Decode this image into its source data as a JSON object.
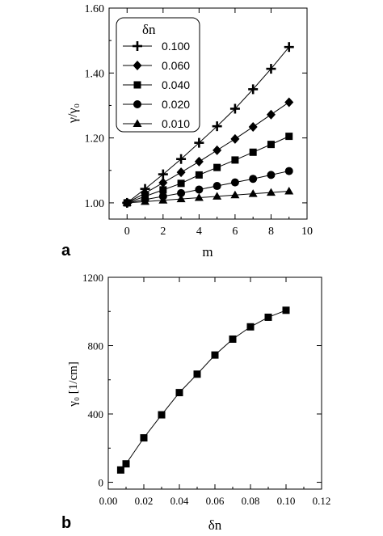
{
  "chart_data": [
    {
      "panel_label": "a",
      "type": "line",
      "xlabel": "m",
      "ylabel": "γ/γ₀",
      "xlim": [
        -1,
        10
      ],
      "ylim": [
        0.95,
        1.6
      ],
      "xticks": [
        0,
        2,
        4,
        6,
        8,
        10
      ],
      "yticks": [
        1.0,
        1.2,
        1.4,
        1.6
      ],
      "ytick_labels": [
        "1.00",
        "1.20",
        "1.40",
        "1.60"
      ],
      "legend_title": "δn",
      "legend_position": "top-left",
      "grid": false,
      "x": [
        0,
        1,
        2,
        3,
        4,
        5,
        6,
        7,
        8,
        9
      ],
      "series": [
        {
          "name": "0.100",
          "marker": "plus",
          "values": [
            1.0,
            1.043,
            1.088,
            1.135,
            1.185,
            1.236,
            1.29,
            1.35,
            1.413,
            1.48
          ]
        },
        {
          "name": "0.060",
          "marker": "diamond",
          "values": [
            1.0,
            1.03,
            1.062,
            1.094,
            1.127,
            1.162,
            1.197,
            1.234,
            1.272,
            1.31
          ]
        },
        {
          "name": "0.040",
          "marker": "square",
          "values": [
            1.0,
            1.02,
            1.04,
            1.06,
            1.086,
            1.109,
            1.132,
            1.156,
            1.18,
            1.205
          ]
        },
        {
          "name": "0.020",
          "marker": "circle",
          "values": [
            1.0,
            1.01,
            1.02,
            1.03,
            1.041,
            1.052,
            1.063,
            1.074,
            1.086,
            1.098
          ]
        },
        {
          "name": "0.010",
          "marker": "triangle",
          "values": [
            1.0,
            1.004,
            1.008,
            1.012,
            1.016,
            1.02,
            1.024,
            1.028,
            1.032,
            1.036
          ]
        }
      ]
    },
    {
      "panel_label": "b",
      "type": "line",
      "xlabel": "δn",
      "ylabel": "γ₀  [1/cm]",
      "xlim": [
        0,
        0.12
      ],
      "ylim": [
        -40,
        1200
      ],
      "xticks": [
        0,
        0.02,
        0.04,
        0.06,
        0.08,
        0.1,
        0.12
      ],
      "xtick_labels": [
        "0.00",
        "0.02",
        "0.04",
        "0.06",
        "0.08",
        "0.10",
        "0.12"
      ],
      "yticks": [
        0,
        400,
        800,
        1200
      ],
      "ytick_labels": [
        "0",
        "400",
        "800",
        "1200"
      ],
      "grid": false,
      "series": [
        {
          "marker": "square",
          "x": [
            0.007,
            0.01,
            0.02,
            0.03,
            0.04,
            0.05,
            0.06,
            0.07,
            0.08,
            0.09,
            0.1
          ],
          "values": [
            72,
            108,
            260,
            395,
            525,
            633,
            745,
            838,
            910,
            966,
            1007
          ]
        }
      ]
    }
  ]
}
